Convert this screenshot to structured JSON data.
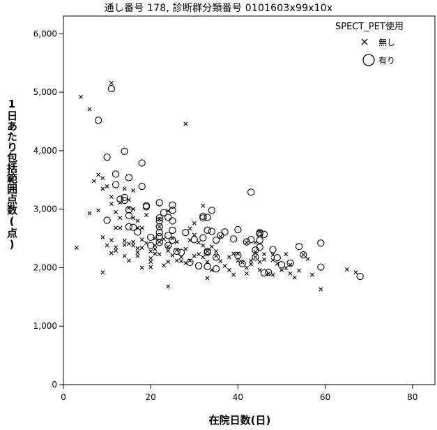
{
  "chart_data": {
    "type": "scatter",
    "title": "通し番号 178, 診断群分類番号 0101603x99x10x",
    "xlabel": "在院日数(日)",
    "ylabel": "1日あたり包括範囲点数(点)",
    "xlim": [
      0,
      84
    ],
    "ylim": [
      0,
      6200
    ],
    "x_ticks": [
      0,
      20,
      40,
      60,
      80
    ],
    "x_tick_labels": [
      "0",
      "20",
      "40",
      "60",
      "80"
    ],
    "y_ticks": [
      0,
      1000,
      2000,
      3000,
      4000,
      5000,
      6000
    ],
    "y_tick_labels": [
      "0",
      "1,000",
      "2,000",
      "3,000",
      "4,000",
      "5,000",
      "6,000"
    ],
    "grid": false,
    "legend": {
      "title": "SPECT_PET使用",
      "position": "top-right"
    },
    "series": [
      {
        "name": "無し",
        "marker": "x",
        "points": [
          [
            4,
            4920
          ],
          [
            6,
            4710
          ],
          [
            11,
            5160
          ],
          [
            28,
            4460
          ],
          [
            3,
            2340
          ],
          [
            6,
            2930
          ],
          [
            7,
            3480
          ],
          [
            8,
            3590
          ],
          [
            8,
            2980
          ],
          [
            9,
            3530
          ],
          [
            9,
            3350
          ],
          [
            9,
            2520
          ],
          [
            9,
            1920
          ],
          [
            10,
            3390
          ],
          [
            10,
            2380
          ],
          [
            11,
            3210
          ],
          [
            11,
            3090
          ],
          [
            11,
            2470
          ],
          [
            11,
            2250
          ],
          [
            12,
            2950
          ],
          [
            12,
            2680
          ],
          [
            12,
            2350
          ],
          [
            12,
            2290
          ],
          [
            13,
            3110
          ],
          [
            13,
            2850
          ],
          [
            13,
            2680
          ],
          [
            14,
            3350
          ],
          [
            14,
            2460
          ],
          [
            14,
            2390
          ],
          [
            14,
            2200
          ],
          [
            15,
            3160
          ],
          [
            15,
            3020
          ],
          [
            15,
            2410
          ],
          [
            15,
            2120
          ],
          [
            16,
            3320
          ],
          [
            16,
            3000
          ],
          [
            16,
            2850
          ],
          [
            16,
            2440
          ],
          [
            16,
            2380
          ],
          [
            17,
            2800
          ],
          [
            17,
            2680
          ],
          [
            17,
            2330
          ],
          [
            17,
            2260
          ],
          [
            17,
            2200
          ],
          [
            18,
            2680
          ],
          [
            18,
            2480
          ],
          [
            18,
            2340
          ],
          [
            18,
            2000
          ],
          [
            19,
            2900
          ],
          [
            19,
            2420
          ],
          [
            20,
            2280
          ],
          [
            20,
            2160
          ],
          [
            20,
            2100
          ],
          [
            20,
            2010
          ],
          [
            21,
            2500
          ],
          [
            21,
            2380
          ],
          [
            21,
            2320
          ],
          [
            21,
            2240
          ],
          [
            22,
            2830
          ],
          [
            22,
            2700
          ],
          [
            22,
            2440
          ],
          [
            22,
            2230
          ],
          [
            23,
            2490
          ],
          [
            23,
            2040
          ],
          [
            24,
            2970
          ],
          [
            24,
            2360
          ],
          [
            24,
            2290
          ],
          [
            24,
            2100
          ],
          [
            24,
            1680
          ],
          [
            25,
            2500
          ],
          [
            25,
            2210
          ],
          [
            26,
            2440
          ],
          [
            26,
            2300
          ],
          [
            26,
            2120
          ],
          [
            27,
            2180
          ],
          [
            27,
            2110
          ],
          [
            28,
            2320
          ],
          [
            28,
            2080
          ],
          [
            29,
            2670
          ],
          [
            29,
            2470
          ],
          [
            29,
            2120
          ],
          [
            30,
            2760
          ],
          [
            30,
            2560
          ],
          [
            30,
            2200
          ],
          [
            31,
            2430
          ],
          [
            31,
            2230
          ],
          [
            32,
            3060
          ],
          [
            32,
            2380
          ],
          [
            32,
            2180
          ],
          [
            33,
            2280
          ],
          [
            33,
            2100
          ],
          [
            33,
            1820
          ],
          [
            34,
            2360
          ],
          [
            34,
            1960
          ],
          [
            35,
            2280
          ],
          [
            35,
            2200
          ],
          [
            36,
            2530
          ],
          [
            36,
            2110
          ],
          [
            37,
            2030
          ],
          [
            38,
            2180
          ],
          [
            38,
            1960
          ],
          [
            39,
            2240
          ],
          [
            39,
            1880
          ],
          [
            40,
            2240
          ],
          [
            40,
            2120
          ],
          [
            41,
            2090
          ],
          [
            42,
            2430
          ],
          [
            42,
            2000
          ],
          [
            42,
            1900
          ],
          [
            43,
            2120
          ],
          [
            43,
            2060
          ],
          [
            44,
            2430
          ],
          [
            44,
            2270
          ],
          [
            44,
            2180
          ],
          [
            45,
            2610
          ],
          [
            45,
            2100
          ],
          [
            45,
            1960
          ],
          [
            46,
            2230
          ],
          [
            46,
            2140
          ],
          [
            47,
            1900
          ],
          [
            48,
            2220
          ],
          [
            48,
            2130
          ],
          [
            48,
            1880
          ],
          [
            49,
            2070
          ],
          [
            50,
            1960
          ],
          [
            51,
            2230
          ],
          [
            51,
            1990
          ],
          [
            52,
            2050
          ],
          [
            52,
            1900
          ],
          [
            53,
            1830
          ],
          [
            54,
            1950
          ],
          [
            55,
            2220
          ],
          [
            56,
            2150
          ],
          [
            57,
            1880
          ],
          [
            59,
            1630
          ],
          [
            65,
            1970
          ],
          [
            67,
            1920
          ]
        ]
      },
      {
        "name": "有り",
        "marker": "o",
        "points": [
          [
            11,
            5060
          ],
          [
            8,
            4520
          ],
          [
            14,
            3990
          ],
          [
            10,
            3890
          ],
          [
            18,
            3790
          ],
          [
            12,
            3600
          ],
          [
            15,
            3540
          ],
          [
            12,
            3420
          ],
          [
            18,
            3390
          ],
          [
            13,
            3170
          ],
          [
            14,
            3200
          ],
          [
            14,
            3150
          ],
          [
            10,
            2810
          ],
          [
            15,
            2990
          ],
          [
            15,
            2890
          ],
          [
            15,
            2700
          ],
          [
            16,
            2690
          ],
          [
            17,
            2610
          ],
          [
            19,
            3040
          ],
          [
            19,
            3060
          ],
          [
            20,
            2520
          ],
          [
            20,
            2380
          ],
          [
            22,
            3110
          ],
          [
            22,
            2850
          ],
          [
            22,
            2800
          ],
          [
            22,
            2700
          ],
          [
            22,
            2600
          ],
          [
            22,
            2530
          ],
          [
            22,
            2430
          ],
          [
            23,
            2940
          ],
          [
            24,
            2860
          ],
          [
            24,
            2550
          ],
          [
            24,
            2380
          ],
          [
            25,
            3070
          ],
          [
            25,
            2980
          ],
          [
            25,
            2800
          ],
          [
            25,
            2640
          ],
          [
            25,
            2470
          ],
          [
            26,
            2280
          ],
          [
            27,
            2260
          ],
          [
            28,
            2600
          ],
          [
            29,
            2090
          ],
          [
            30,
            2480
          ],
          [
            31,
            2030
          ],
          [
            32,
            2510
          ],
          [
            32,
            2850
          ],
          [
            32,
            2880
          ],
          [
            33,
            2860
          ],
          [
            33,
            2640
          ],
          [
            33,
            2280
          ],
          [
            33,
            2260
          ],
          [
            33,
            2020
          ],
          [
            34,
            2980
          ],
          [
            34,
            2620
          ],
          [
            35,
            2470
          ],
          [
            35,
            2180
          ],
          [
            35,
            1980
          ],
          [
            36,
            2550
          ],
          [
            37,
            2610
          ],
          [
            39,
            2490
          ],
          [
            40,
            2650
          ],
          [
            40,
            2210
          ],
          [
            41,
            2070
          ],
          [
            42,
            2440
          ],
          [
            43,
            3290
          ],
          [
            43,
            2480
          ],
          [
            44,
            2300
          ],
          [
            44,
            2180
          ],
          [
            45,
            2600
          ],
          [
            45,
            2580
          ],
          [
            45,
            2470
          ],
          [
            45,
            2350
          ],
          [
            46,
            1910
          ],
          [
            46,
            2570
          ],
          [
            47,
            1920
          ],
          [
            48,
            2310
          ],
          [
            49,
            2170
          ],
          [
            50,
            2050
          ],
          [
            52,
            2080
          ],
          [
            54,
            2360
          ],
          [
            55,
            2220
          ],
          [
            59,
            2420
          ],
          [
            59,
            2010
          ],
          [
            68,
            1850
          ]
        ]
      }
    ]
  }
}
